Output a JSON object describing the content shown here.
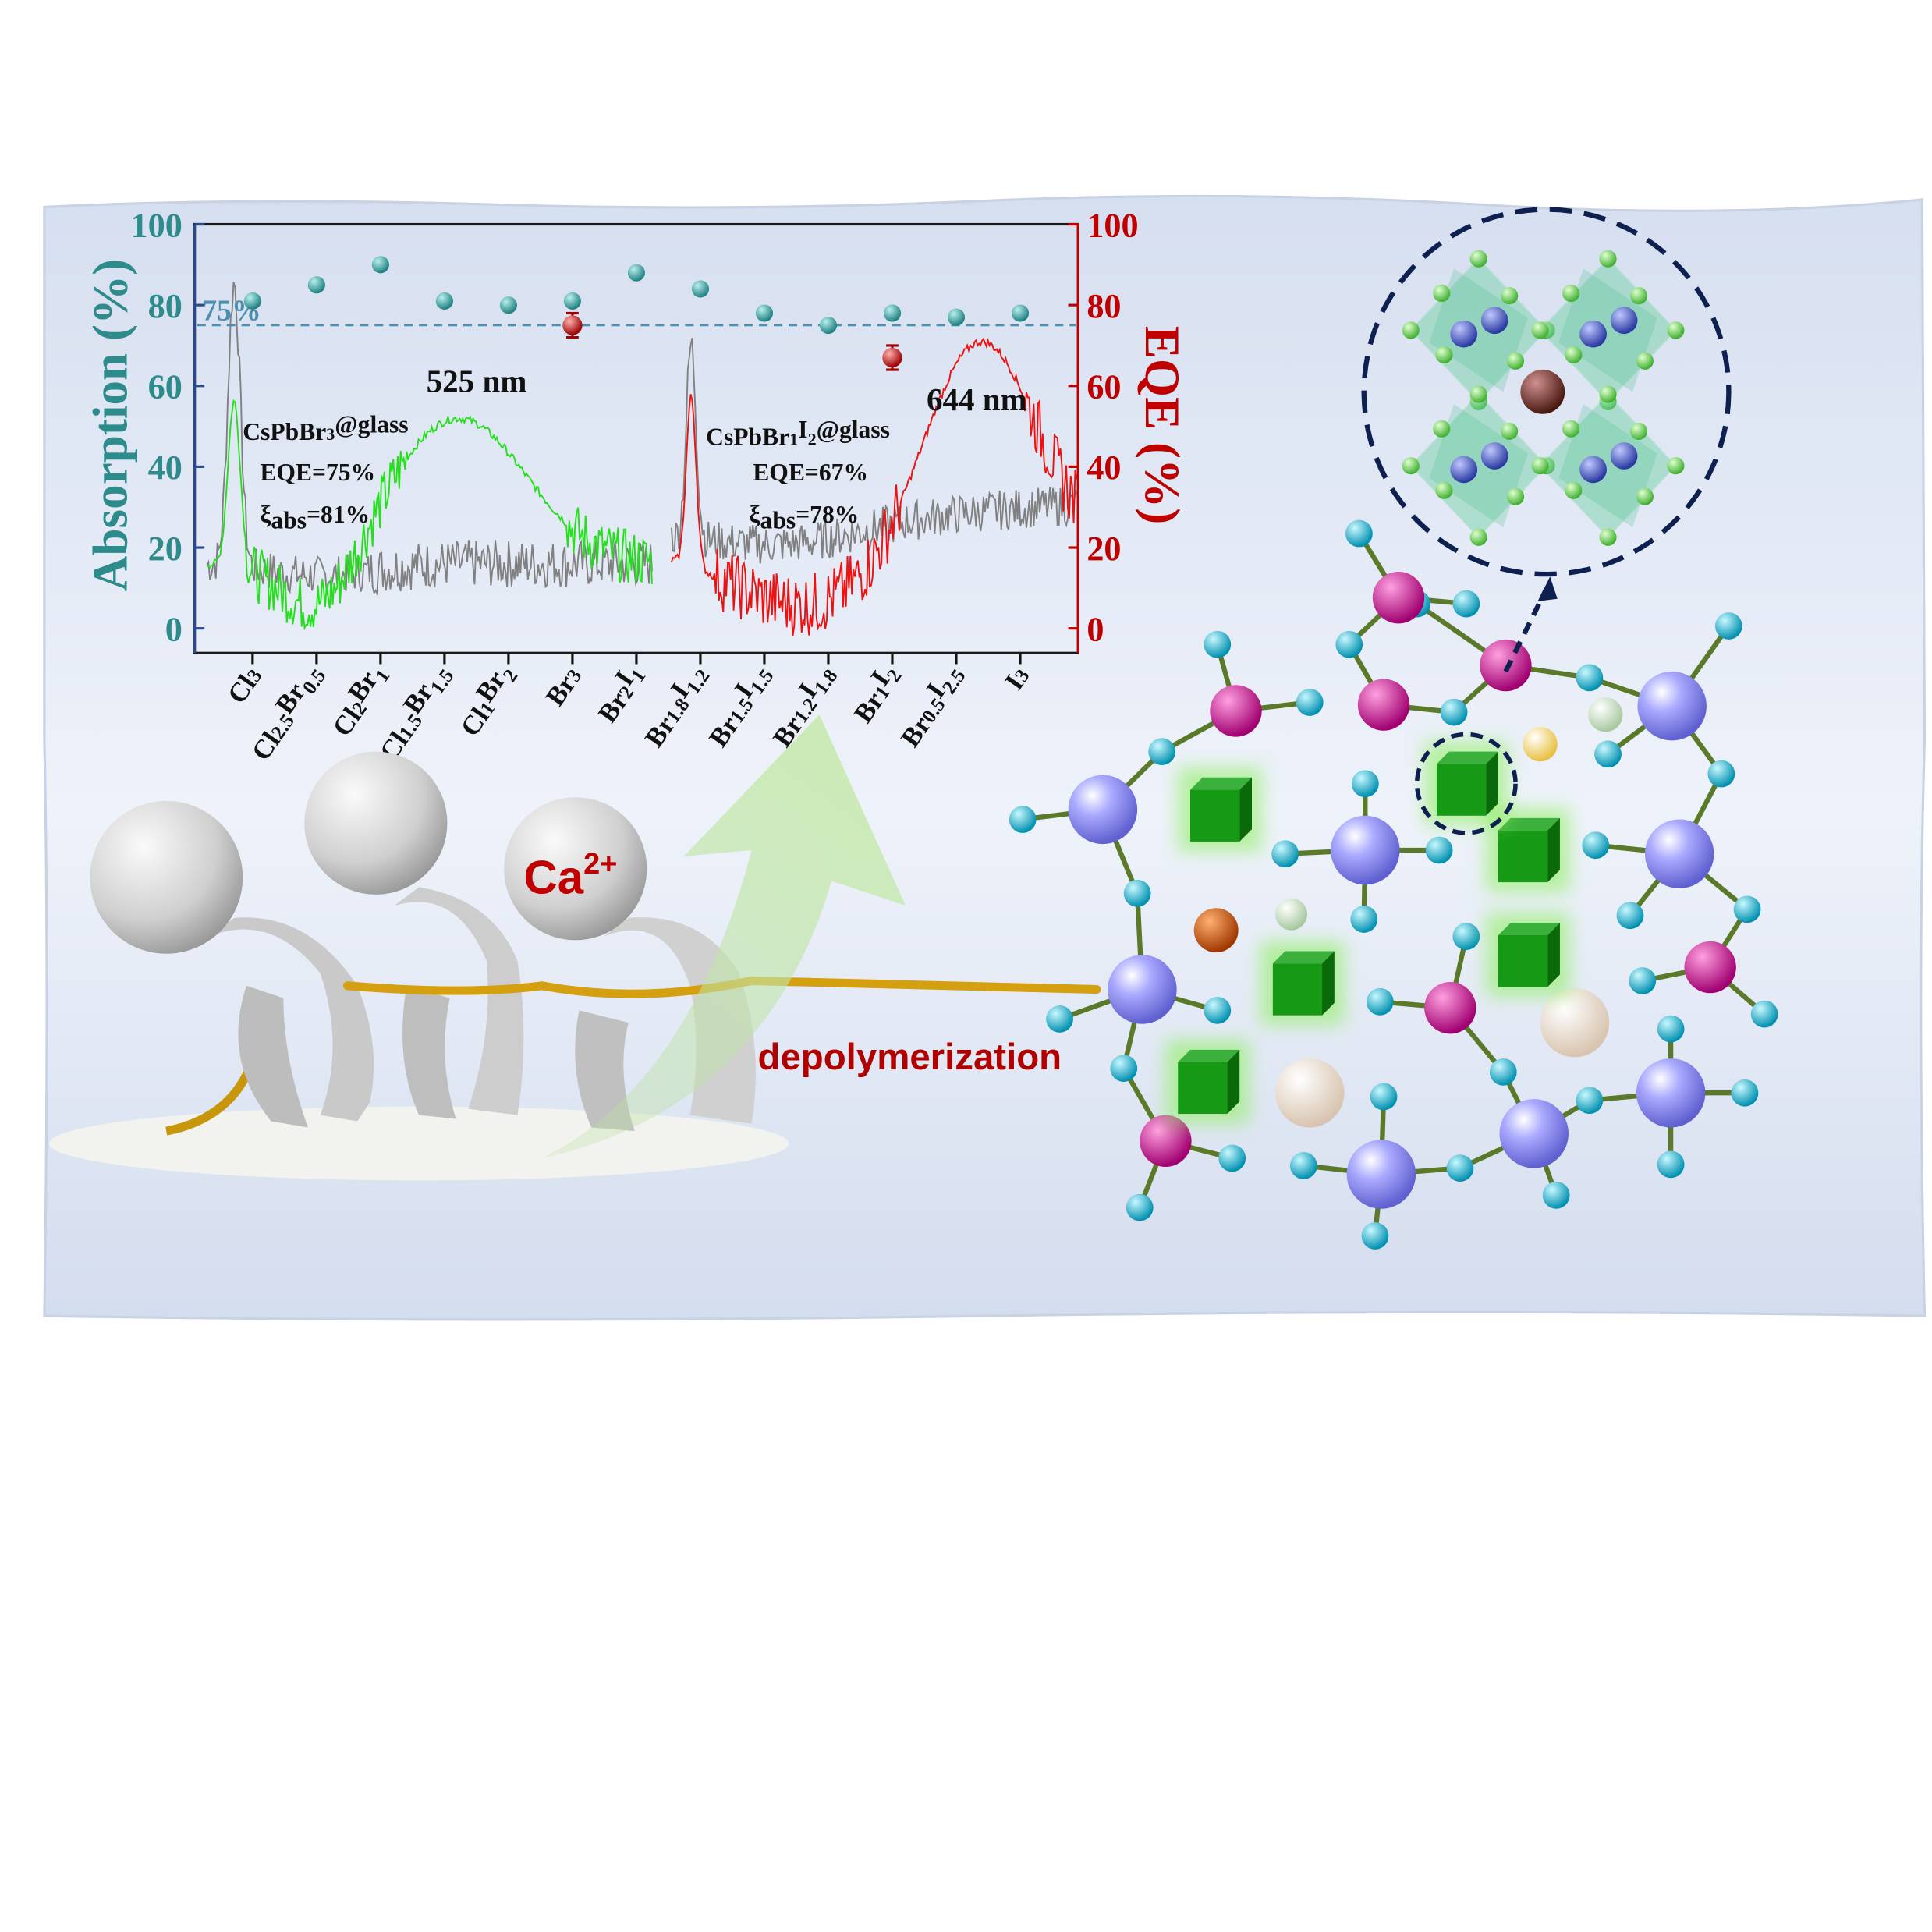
{
  "colors": {
    "absorption_axis": "#2e8b8b",
    "eqe_axis": "#c00000",
    "green_pl": "#22e01a",
    "red_pl": "#ee1111",
    "absorption_trace": "#808080",
    "reference_line": "#4a90b0",
    "label_red": "#b00000"
  },
  "chart_data": {
    "type": "scatter",
    "categories": [
      "Cl3",
      "Cl2.5Br0.5",
      "Cl2Br1",
      "Cl1.5Br1.5",
      "Cl1Br2",
      "Br3",
      "Br2I1",
      "Br1.8I1.2",
      "Br1.5I1.5",
      "Br1.2I1.8",
      "Br1I2",
      "Br0.5I2.5",
      "I3"
    ],
    "series": [
      {
        "name": "Absorption (%)",
        "axis": "left",
        "values": [
          81,
          85,
          90,
          81,
          80,
          81,
          88,
          84,
          78,
          75,
          78,
          77,
          78
        ]
      },
      {
        "name": "EQE (%)",
        "axis": "right",
        "values": [
          null,
          null,
          null,
          null,
          null,
          75,
          null,
          null,
          null,
          null,
          67,
          null,
          null
        ],
        "error": 3
      }
    ],
    "ylabel_left": "Absorption (%)",
    "ylabel_right": "EQE (%)",
    "ylim_left": [
      0,
      100
    ],
    "ylim_right": [
      0,
      100
    ],
    "yticks": [
      "0",
      "20",
      "40",
      "60",
      "80",
      "100"
    ],
    "reference_line": {
      "value": 75,
      "label": "75%"
    },
    "grid": false,
    "annotations": {
      "green_peak": "525 nm",
      "red_peak": "644 nm",
      "sample1": {
        "name": "CsPbBr3@glass",
        "eqe": "EQE=75%",
        "xi_symbol": "ξ",
        "xi_sub": "abs",
        "xi_value": "=81%"
      },
      "sample2": {
        "name": "CsPbBr1I2@glass",
        "eqe": "EQE=67%",
        "xi_symbol": "ξ",
        "xi_sub": "abs",
        "xi_value": "=78%"
      }
    }
  },
  "diagram": {
    "ion_label_base": "Ca",
    "ion_label_charge": "2+",
    "process_label": "depolymerization"
  }
}
